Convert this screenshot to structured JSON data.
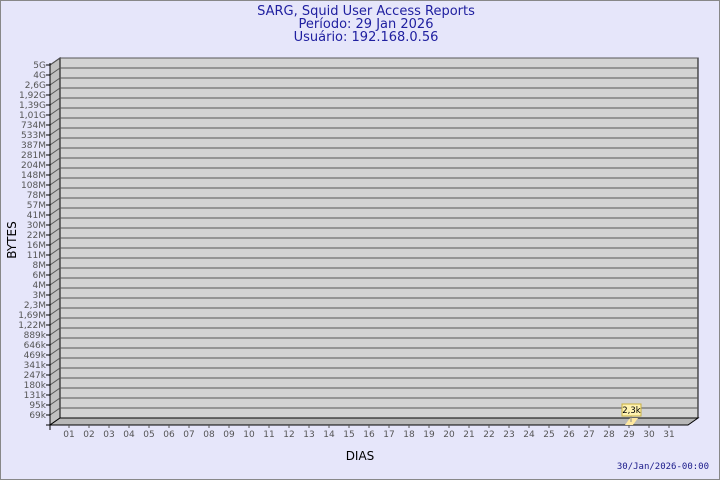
{
  "chart_data": {
    "type": "bar",
    "title": "SARG, Squid User Access Reports",
    "subtitle_lines": [
      "Período: 29 Jan 2026",
      "Usuário: 192.168.0.56"
    ],
    "xlabel": "DIAS",
    "ylabel": "BYTES",
    "y_scale": "log",
    "y_tick_labels": [
      "5G",
      "4G",
      "2,6G",
      "1,92G",
      "1,39G",
      "1,01G",
      "734M",
      "533M",
      "387M",
      "281M",
      "204M",
      "148M",
      "108M",
      "78M",
      "57M",
      "41M",
      "30M",
      "22M",
      "16M",
      "11M",
      "8M",
      "6M",
      "4M",
      "3M",
      "2,3M",
      "1,69M",
      "1,22M",
      "889k",
      "646k",
      "469k",
      "341k",
      "247k",
      "180k",
      "131k",
      "95k",
      "69k"
    ],
    "categories": [
      "01",
      "02",
      "03",
      "04",
      "05",
      "06",
      "07",
      "08",
      "09",
      "10",
      "11",
      "12",
      "13",
      "14",
      "15",
      "16",
      "17",
      "18",
      "19",
      "20",
      "21",
      "22",
      "23",
      "24",
      "25",
      "26",
      "27",
      "28",
      "29",
      "30",
      "31"
    ],
    "series": [
      {
        "points": [
          {
            "x": "29",
            "value": 2300,
            "label": "2,3k"
          }
        ]
      }
    ],
    "grid": true,
    "colors": {
      "background": "#e6e6fa",
      "wall": "#d3d3d3",
      "bar": "#ffe8a0",
      "title": "#2020a0"
    }
  },
  "footer": {
    "timestamp": "30/Jan/2026-00:00"
  }
}
